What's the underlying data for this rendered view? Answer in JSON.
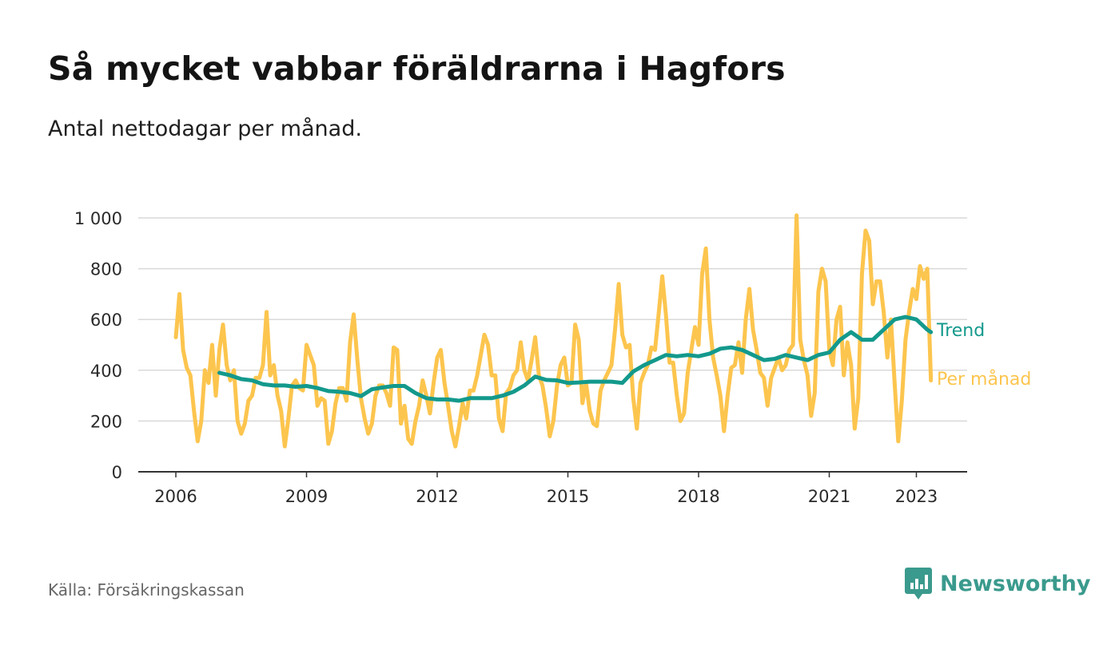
{
  "title": "Så mycket vabbar föräldrarna i Hagfors",
  "subtitle": "Antal nettodagar per månad.",
  "source": "Källa: Försäkringskassan",
  "brand": {
    "name": "Newsworthy",
    "icon": "bar-chart-speech-bubble-icon",
    "color": "#3a9a8d"
  },
  "chart_data": {
    "type": "line",
    "x_ticks": [
      "2006",
      "2009",
      "2012",
      "2015",
      "2018",
      "2021",
      "2023"
    ],
    "y_ticks": [
      "0",
      "200",
      "400",
      "600",
      "800",
      "1 000"
    ],
    "ylim": [
      0,
      1000
    ],
    "x_range": [
      "2006-01",
      "2023-05"
    ],
    "grid": true,
    "series": [
      {
        "name": "Per månad",
        "color": "#fcc54e",
        "x": [
          "2006-01",
          "2006-02",
          "2006-03",
          "2006-04",
          "2006-05",
          "2006-06",
          "2006-07",
          "2006-08",
          "2006-09",
          "2006-10",
          "2006-11",
          "2006-12",
          "2007-01",
          "2007-02",
          "2007-03",
          "2007-04",
          "2007-05",
          "2007-06",
          "2007-07",
          "2007-08",
          "2007-09",
          "2007-10",
          "2007-11",
          "2007-12",
          "2008-01",
          "2008-02",
          "2008-03",
          "2008-04",
          "2008-05",
          "2008-06",
          "2008-07",
          "2008-08",
          "2008-09",
          "2008-10",
          "2008-11",
          "2008-12",
          "2009-01",
          "2009-02",
          "2009-03",
          "2009-04",
          "2009-05",
          "2009-06",
          "2009-07",
          "2009-08",
          "2009-09",
          "2009-10",
          "2009-11",
          "2009-12",
          "2010-01",
          "2010-02",
          "2010-03",
          "2010-04",
          "2010-05",
          "2010-06",
          "2010-07",
          "2010-08",
          "2010-09",
          "2010-10",
          "2010-11",
          "2010-12",
          "2011-01",
          "2011-02",
          "2011-03",
          "2011-04",
          "2011-05",
          "2011-06",
          "2011-07",
          "2011-08",
          "2011-09",
          "2011-10",
          "2011-11",
          "2011-12",
          "2012-01",
          "2012-02",
          "2012-03",
          "2012-04",
          "2012-05",
          "2012-06",
          "2012-07",
          "2012-08",
          "2012-09",
          "2012-10",
          "2012-11",
          "2012-12",
          "2013-01",
          "2013-02",
          "2013-03",
          "2013-04",
          "2013-05",
          "2013-06",
          "2013-07",
          "2013-08",
          "2013-09",
          "2013-10",
          "2013-11",
          "2013-12",
          "2014-01",
          "2014-02",
          "2014-03",
          "2014-04",
          "2014-05",
          "2014-06",
          "2014-07",
          "2014-08",
          "2014-09",
          "2014-10",
          "2014-11",
          "2014-12",
          "2015-01",
          "2015-02",
          "2015-03",
          "2015-04",
          "2015-05",
          "2015-06",
          "2015-07",
          "2015-08",
          "2015-09",
          "2015-10",
          "2015-11",
          "2015-12",
          "2016-01",
          "2016-02",
          "2016-03",
          "2016-04",
          "2016-05",
          "2016-06",
          "2016-07",
          "2016-08",
          "2016-09",
          "2016-10",
          "2016-11",
          "2016-12",
          "2017-01",
          "2017-02",
          "2017-03",
          "2017-04",
          "2017-05",
          "2017-06",
          "2017-07",
          "2017-08",
          "2017-09",
          "2017-10",
          "2017-11",
          "2017-12",
          "2018-01",
          "2018-02",
          "2018-03",
          "2018-04",
          "2018-05",
          "2018-06",
          "2018-07",
          "2018-08",
          "2018-09",
          "2018-10",
          "2018-11",
          "2018-12",
          "2019-01",
          "2019-02",
          "2019-03",
          "2019-04",
          "2019-05",
          "2019-06",
          "2019-07",
          "2019-08",
          "2019-09",
          "2019-10",
          "2019-11",
          "2019-12",
          "2020-01",
          "2020-02",
          "2020-03",
          "2020-04",
          "2020-05",
          "2020-06",
          "2020-07",
          "2020-08",
          "2020-09",
          "2020-10",
          "2020-11",
          "2020-12",
          "2021-01",
          "2021-02",
          "2021-03",
          "2021-04",
          "2021-05",
          "2021-06",
          "2021-07",
          "2021-08",
          "2021-09",
          "2021-10",
          "2021-11",
          "2021-12",
          "2022-01",
          "2022-02",
          "2022-03",
          "2022-04",
          "2022-05",
          "2022-06",
          "2022-07",
          "2022-08",
          "2022-09",
          "2022-10",
          "2022-11",
          "2022-12",
          "2023-01",
          "2023-02",
          "2023-03",
          "2023-04",
          "2023-05"
        ],
        "values": [
          530,
          700,
          480,
          410,
          380,
          240,
          120,
          200,
          400,
          350,
          500,
          300,
          480,
          580,
          420,
          360,
          400,
          200,
          150,
          190,
          280,
          300,
          370,
          370,
          420,
          630,
          380,
          420,
          300,
          240,
          100,
          210,
          340,
          360,
          330,
          320,
          500,
          460,
          420,
          260,
          290,
          280,
          110,
          160,
          270,
          330,
          330,
          280,
          510,
          620,
          440,
          290,
          210,
          150,
          190,
          300,
          340,
          340,
          310,
          260,
          490,
          480,
          190,
          260,
          130,
          110,
          200,
          260,
          360,
          300,
          230,
          350,
          450,
          480,
          350,
          260,
          160,
          100,
          180,
          270,
          210,
          320,
          320,
          380,
          460,
          540,
          500,
          380,
          380,
          210,
          160,
          310,
          330,
          380,
          400,
          510,
          400,
          360,
          440,
          530,
          380,
          340,
          250,
          140,
          200,
          340,
          420,
          450,
          340,
          350,
          580,
          520,
          270,
          350,
          240,
          190,
          180,
          320,
          360,
          390,
          420,
          560,
          740,
          540,
          490,
          500,
          290,
          170,
          350,
          390,
          420,
          490,
          480,
          620,
          770,
          620,
          430,
          430,
          300,
          200,
          230,
          390,
          480,
          570,
          500,
          780,
          880,
          600,
          450,
          380,
          300,
          160,
          300,
          410,
          420,
          510,
          390,
          600,
          720,
          560,
          480,
          390,
          370,
          260,
          370,
          410,
          450,
          400,
          420,
          480,
          500,
          1010,
          520,
          440,
          380,
          220,
          310,
          710,
          800,
          750,
          480,
          420,
          600,
          650,
          380,
          510,
          420,
          170,
          290,
          780,
          950,
          910,
          660,
          750,
          750,
          630,
          450,
          600,
          350,
          120,
          280,
          520,
          630,
          720,
          680,
          810,
          760,
          800,
          360
        ]
      },
      {
        "name": "Trend",
        "color": "#13998c",
        "x": [
          "2007-01",
          "2007-04",
          "2007-07",
          "2007-10",
          "2008-01",
          "2008-04",
          "2008-07",
          "2008-10",
          "2009-01",
          "2009-04",
          "2009-07",
          "2009-10",
          "2010-01",
          "2010-04",
          "2010-07",
          "2010-10",
          "2011-01",
          "2011-04",
          "2011-07",
          "2011-10",
          "2012-01",
          "2012-04",
          "2012-07",
          "2012-10",
          "2013-01",
          "2013-04",
          "2013-07",
          "2013-10",
          "2014-01",
          "2014-04",
          "2014-07",
          "2014-10",
          "2015-01",
          "2015-04",
          "2015-07",
          "2015-10",
          "2016-01",
          "2016-04",
          "2016-07",
          "2016-10",
          "2017-01",
          "2017-04",
          "2017-07",
          "2017-10",
          "2018-01",
          "2018-04",
          "2018-07",
          "2018-10",
          "2019-01",
          "2019-04",
          "2019-07",
          "2019-10",
          "2020-01",
          "2020-04",
          "2020-07",
          "2020-10",
          "2021-01",
          "2021-04",
          "2021-07",
          "2021-10",
          "2022-01",
          "2022-04",
          "2022-07",
          "2022-10",
          "2023-01",
          "2023-04",
          "2023-05"
        ],
        "values": [
          390,
          380,
          365,
          360,
          345,
          340,
          340,
          335,
          338,
          330,
          318,
          315,
          310,
          298,
          325,
          332,
          338,
          338,
          310,
          290,
          285,
          285,
          280,
          290,
          290,
          290,
          300,
          315,
          340,
          375,
          362,
          360,
          350,
          352,
          355,
          355,
          355,
          350,
          395,
          420,
          440,
          460,
          455,
          460,
          455,
          465,
          485,
          490,
          480,
          460,
          440,
          445,
          460,
          450,
          440,
          460,
          470,
          520,
          550,
          520,
          520,
          560,
          600,
          610,
          600,
          560,
          550
        ]
      }
    ]
  }
}
